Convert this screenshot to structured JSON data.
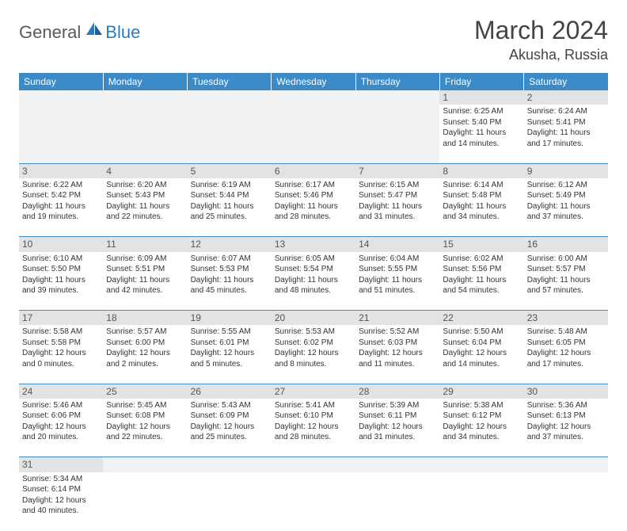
{
  "logo": {
    "general": "General",
    "blue": "Blue"
  },
  "title": "March 2024",
  "location": "Akusha, Russia",
  "colors": {
    "header_bg": "#3b8bc9",
    "header_fg": "#ffffff",
    "daynum_bg": "#e3e3e3",
    "empty_bg": "#f2f2f2",
    "border": "#3b8bc9",
    "logo_general": "#5a5a5a",
    "logo_blue": "#2b7bbf"
  },
  "weekdays": [
    "Sunday",
    "Monday",
    "Tuesday",
    "Wednesday",
    "Thursday",
    "Friday",
    "Saturday"
  ],
  "weeks": [
    {
      "nums": [
        "",
        "",
        "",
        "",
        "",
        "1",
        "2"
      ],
      "cells": [
        null,
        null,
        null,
        null,
        null,
        {
          "sr": "6:25 AM",
          "ss": "5:40 PM",
          "dh": 11,
          "dm": 14
        },
        {
          "sr": "6:24 AM",
          "ss": "5:41 PM",
          "dh": 11,
          "dm": 17
        }
      ]
    },
    {
      "nums": [
        "3",
        "4",
        "5",
        "6",
        "7",
        "8",
        "9"
      ],
      "cells": [
        {
          "sr": "6:22 AM",
          "ss": "5:42 PM",
          "dh": 11,
          "dm": 19
        },
        {
          "sr": "6:20 AM",
          "ss": "5:43 PM",
          "dh": 11,
          "dm": 22
        },
        {
          "sr": "6:19 AM",
          "ss": "5:44 PM",
          "dh": 11,
          "dm": 25
        },
        {
          "sr": "6:17 AM",
          "ss": "5:46 PM",
          "dh": 11,
          "dm": 28
        },
        {
          "sr": "6:15 AM",
          "ss": "5:47 PM",
          "dh": 11,
          "dm": 31
        },
        {
          "sr": "6:14 AM",
          "ss": "5:48 PM",
          "dh": 11,
          "dm": 34
        },
        {
          "sr": "6:12 AM",
          "ss": "5:49 PM",
          "dh": 11,
          "dm": 37
        }
      ]
    },
    {
      "nums": [
        "10",
        "11",
        "12",
        "13",
        "14",
        "15",
        "16"
      ],
      "cells": [
        {
          "sr": "6:10 AM",
          "ss": "5:50 PM",
          "dh": 11,
          "dm": 39
        },
        {
          "sr": "6:09 AM",
          "ss": "5:51 PM",
          "dh": 11,
          "dm": 42
        },
        {
          "sr": "6:07 AM",
          "ss": "5:53 PM",
          "dh": 11,
          "dm": 45
        },
        {
          "sr": "6:05 AM",
          "ss": "5:54 PM",
          "dh": 11,
          "dm": 48
        },
        {
          "sr": "6:04 AM",
          "ss": "5:55 PM",
          "dh": 11,
          "dm": 51
        },
        {
          "sr": "6:02 AM",
          "ss": "5:56 PM",
          "dh": 11,
          "dm": 54
        },
        {
          "sr": "6:00 AM",
          "ss": "5:57 PM",
          "dh": 11,
          "dm": 57
        }
      ]
    },
    {
      "nums": [
        "17",
        "18",
        "19",
        "20",
        "21",
        "22",
        "23"
      ],
      "cells": [
        {
          "sr": "5:58 AM",
          "ss": "5:58 PM",
          "dh": 12,
          "dm": 0
        },
        {
          "sr": "5:57 AM",
          "ss": "6:00 PM",
          "dh": 12,
          "dm": 2
        },
        {
          "sr": "5:55 AM",
          "ss": "6:01 PM",
          "dh": 12,
          "dm": 5
        },
        {
          "sr": "5:53 AM",
          "ss": "6:02 PM",
          "dh": 12,
          "dm": 8
        },
        {
          "sr": "5:52 AM",
          "ss": "6:03 PM",
          "dh": 12,
          "dm": 11
        },
        {
          "sr": "5:50 AM",
          "ss": "6:04 PM",
          "dh": 12,
          "dm": 14
        },
        {
          "sr": "5:48 AM",
          "ss": "6:05 PM",
          "dh": 12,
          "dm": 17
        }
      ]
    },
    {
      "nums": [
        "24",
        "25",
        "26",
        "27",
        "28",
        "29",
        "30"
      ],
      "cells": [
        {
          "sr": "5:46 AM",
          "ss": "6:06 PM",
          "dh": 12,
          "dm": 20
        },
        {
          "sr": "5:45 AM",
          "ss": "6:08 PM",
          "dh": 12,
          "dm": 22
        },
        {
          "sr": "5:43 AM",
          "ss": "6:09 PM",
          "dh": 12,
          "dm": 25
        },
        {
          "sr": "5:41 AM",
          "ss": "6:10 PM",
          "dh": 12,
          "dm": 28
        },
        {
          "sr": "5:39 AM",
          "ss": "6:11 PM",
          "dh": 12,
          "dm": 31
        },
        {
          "sr": "5:38 AM",
          "ss": "6:12 PM",
          "dh": 12,
          "dm": 34
        },
        {
          "sr": "5:36 AM",
          "ss": "6:13 PM",
          "dh": 12,
          "dm": 37
        }
      ]
    },
    {
      "nums": [
        "31",
        "",
        "",
        "",
        "",
        "",
        ""
      ],
      "cells": [
        {
          "sr": "5:34 AM",
          "ss": "6:14 PM",
          "dh": 12,
          "dm": 40
        },
        null,
        null,
        null,
        null,
        null,
        null
      ]
    }
  ],
  "labels": {
    "sunrise": "Sunrise:",
    "sunset": "Sunset:",
    "daylight": "Daylight:",
    "hours": "hours",
    "and": "and",
    "minutes": "minutes."
  }
}
